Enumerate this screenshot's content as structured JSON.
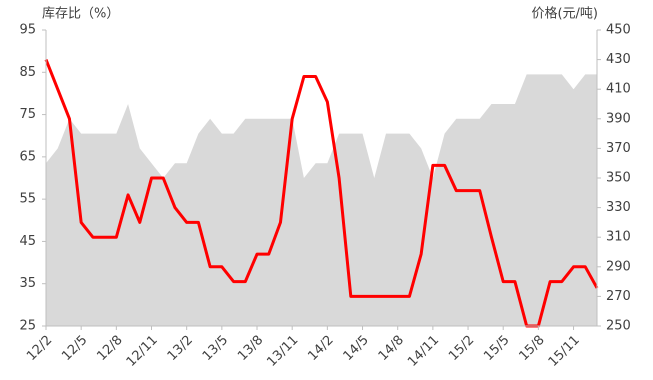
{
  "chart_data": {
    "type": "line",
    "y_label": "库存比（%）",
    "y2_label": "价格(元/吨)",
    "categories": [
      "12/2",
      null,
      null,
      "12/5",
      null,
      null,
      "12/8",
      null,
      null,
      "12/11",
      null,
      null,
      "13/2",
      null,
      null,
      "13/5",
      null,
      null,
      "13/8",
      null,
      null,
      "13/11",
      null,
      null,
      "14/2",
      null,
      null,
      "14/5",
      null,
      null,
      "14/8",
      null,
      null,
      "14/11",
      null,
      null,
      "15/2",
      null,
      null,
      "15/5",
      null,
      null,
      "15/8",
      null,
      null,
      "15/11",
      null,
      null
    ],
    "series": [
      {
        "name": "价格",
        "type": "area",
        "axis": "y2",
        "color": "#d9d9d9",
        "values": [
          360,
          370,
          390,
          380,
          380,
          380,
          380,
          400,
          370,
          360,
          350,
          360,
          360,
          380,
          390,
          380,
          380,
          390,
          390,
          390,
          390,
          390,
          350,
          360,
          360,
          380,
          380,
          380,
          350,
          380,
          380,
          380,
          370,
          350,
          380,
          390,
          390,
          390,
          400,
          400,
          400,
          420,
          420,
          420,
          420,
          410,
          420,
          420
        ]
      },
      {
        "name": "库存比",
        "type": "line",
        "axis": "y",
        "color": "#ff0000",
        "values": [
          88,
          81,
          74,
          49.5,
          46,
          46,
          46,
          56,
          49.5,
          60,
          60,
          53,
          49.5,
          49.5,
          39,
          39,
          35.5,
          35.5,
          42,
          42,
          49.5,
          74,
          84,
          84,
          78,
          60,
          32,
          32,
          32,
          32,
          32,
          32,
          42,
          63,
          63,
          57,
          57,
          57,
          46,
          35.5,
          35.5,
          25,
          25,
          35.5,
          35.5,
          39,
          39,
          34
        ]
      }
    ],
    "ylim": [
      25,
      95
    ],
    "yticks": [
      25,
      35,
      45,
      55,
      65,
      75,
      85,
      95
    ],
    "y2lim": [
      250,
      450
    ],
    "y2ticks": [
      250,
      270,
      290,
      310,
      330,
      350,
      370,
      390,
      410,
      430,
      450
    ]
  }
}
